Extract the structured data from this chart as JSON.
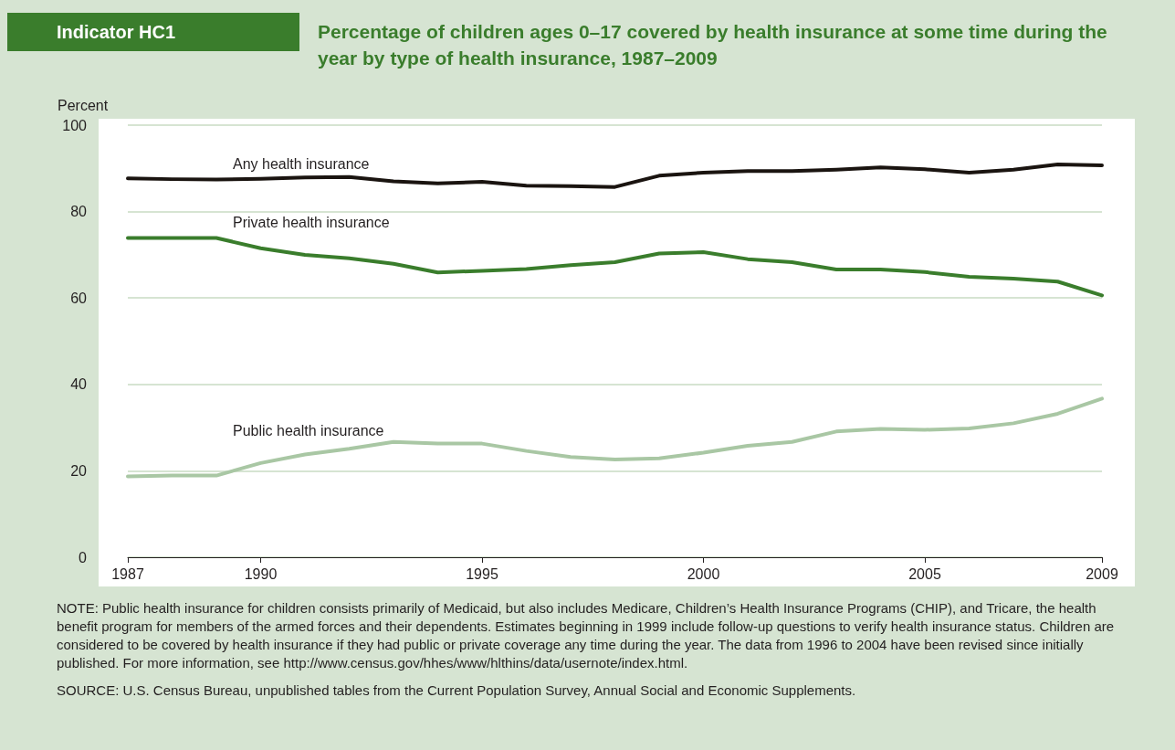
{
  "chart_data": {
    "type": "line",
    "subtitle": "Indicator HC1",
    "title": "Percentage of children ages 0–17 covered by health insurance at some time during the year by type of health insurance, 1987–2009",
    "ylabel": "Percent",
    "x": [
      1987,
      1988,
      1989,
      1990,
      1991,
      1992,
      1993,
      1994,
      1995,
      1996,
      1997,
      1998,
      1999,
      2000,
      2001,
      2002,
      2003,
      2004,
      2005,
      2006,
      2007,
      2008,
      2009
    ],
    "series": [
      {
        "name": "Any health insurance",
        "color": "#1a1410",
        "values": [
          87.7,
          87.5,
          87.4,
          87.6,
          87.9,
          88.0,
          87.0,
          86.5,
          86.9,
          86.0,
          85.9,
          85.7,
          88.3,
          89.0,
          89.4,
          89.4,
          89.7,
          90.2,
          89.8,
          89.0,
          89.7,
          90.9,
          90.7
        ]
      },
      {
        "name": "Private health insurance",
        "color": "#3a7d2c",
        "values": [
          73.9,
          73.9,
          73.9,
          71.5,
          70.0,
          69.2,
          67.9,
          65.9,
          66.3,
          66.7,
          67.6,
          68.3,
          70.3,
          70.6,
          69.0,
          68.3,
          66.6,
          66.6,
          66.0,
          64.9,
          64.5,
          63.8,
          60.6
        ]
      },
      {
        "name": "Public health insurance",
        "color": "#a9c7a4",
        "values": [
          18.7,
          18.9,
          18.9,
          21.8,
          23.8,
          25.1,
          26.7,
          26.3,
          26.3,
          24.6,
          23.2,
          22.6,
          22.9,
          24.2,
          25.8,
          26.7,
          29.1,
          29.7,
          29.5,
          29.8,
          31.0,
          33.2,
          36.7
        ]
      }
    ],
    "xlim": [
      1987,
      2009
    ],
    "xticks": [
      1987,
      1990,
      1995,
      2000,
      2005,
      2009
    ],
    "ylim": [
      0,
      100
    ],
    "yticks": [
      0,
      20,
      40,
      60,
      80,
      100
    ],
    "grid": "y",
    "legend": false,
    "marker": "none",
    "line_style": "solid",
    "annotations": [
      "NOTE: Public health insurance for children consists primarily of Medicaid, but also includes Medicare, Children’s Health Insurance Programs (CHIP), and Tricare, the health benefit program for members of the armed forces and their dependents. Estimates beginning in 1999 include follow-up questions to verify health insurance status. Children are considered to be covered by health insurance if they had public or private coverage any time during the year. The data from 1996 to 2004 have been revised since initially published. For more information, see http://www.census.gov/hhes/www/hlthins/data/usernote/index.html.",
      "SOURCE: U.S. Census Bureau, unpublished tables from the Current Population Survey, Annual Social and Economic Supplements."
    ]
  }
}
